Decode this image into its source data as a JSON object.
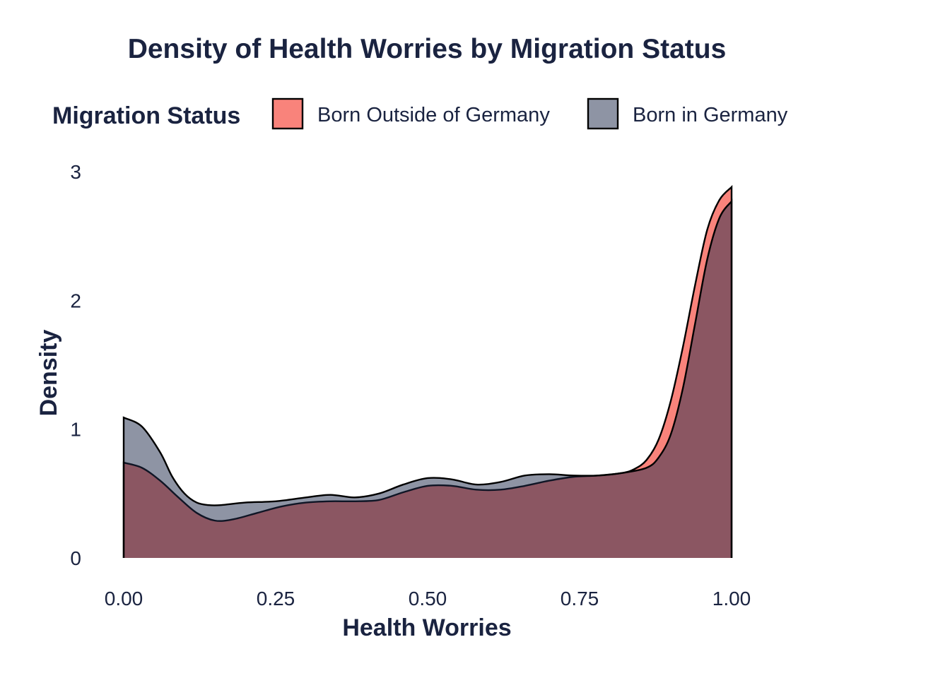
{
  "chart_data": {
    "type": "area",
    "title": "Density of Health Worries by Migration Status",
    "xlabel": "Health Worries",
    "ylabel": "Density",
    "xlim": [
      0,
      1
    ],
    "ylim": [
      0,
      3
    ],
    "x_ticks": [
      "0.00",
      "0.25",
      "0.50",
      "0.75",
      "1.00"
    ],
    "x_tick_values": [
      0,
      0.25,
      0.5,
      0.75,
      1.0
    ],
    "y_ticks": [
      "0",
      "1",
      "2",
      "3"
    ],
    "y_tick_values": [
      0,
      1,
      2,
      3
    ],
    "grid": false,
    "legend": {
      "title": "Migration Status",
      "placement": "top"
    },
    "series": [
      {
        "name": "Born Outside of Germany",
        "color": "#F8766D",
        "fill_opacity": 0.9,
        "points": [
          [
            0.0,
            0.74
          ],
          [
            0.03,
            0.7
          ],
          [
            0.06,
            0.6
          ],
          [
            0.09,
            0.47
          ],
          [
            0.12,
            0.35
          ],
          [
            0.15,
            0.29
          ],
          [
            0.18,
            0.3
          ],
          [
            0.22,
            0.35
          ],
          [
            0.26,
            0.4
          ],
          [
            0.3,
            0.43
          ],
          [
            0.34,
            0.44
          ],
          [
            0.38,
            0.44
          ],
          [
            0.42,
            0.45
          ],
          [
            0.46,
            0.51
          ],
          [
            0.5,
            0.56
          ],
          [
            0.54,
            0.56
          ],
          [
            0.58,
            0.53
          ],
          [
            0.62,
            0.53
          ],
          [
            0.66,
            0.56
          ],
          [
            0.7,
            0.6
          ],
          [
            0.74,
            0.63
          ],
          [
            0.78,
            0.64
          ],
          [
            0.82,
            0.66
          ],
          [
            0.84,
            0.69
          ],
          [
            0.86,
            0.76
          ],
          [
            0.88,
            0.92
          ],
          [
            0.9,
            1.22
          ],
          [
            0.92,
            1.64
          ],
          [
            0.94,
            2.12
          ],
          [
            0.96,
            2.55
          ],
          [
            0.98,
            2.78
          ],
          [
            1.0,
            2.88
          ]
        ]
      },
      {
        "name": "Born in Germany",
        "color": "#1E2A4A",
        "fill_opacity": 0.5,
        "points": [
          [
            0.0,
            1.09
          ],
          [
            0.03,
            1.02
          ],
          [
            0.06,
            0.82
          ],
          [
            0.08,
            0.63
          ],
          [
            0.1,
            0.5
          ],
          [
            0.12,
            0.43
          ],
          [
            0.14,
            0.41
          ],
          [
            0.16,
            0.41
          ],
          [
            0.2,
            0.43
          ],
          [
            0.25,
            0.44
          ],
          [
            0.3,
            0.47
          ],
          [
            0.34,
            0.49
          ],
          [
            0.38,
            0.47
          ],
          [
            0.42,
            0.5
          ],
          [
            0.46,
            0.57
          ],
          [
            0.5,
            0.62
          ],
          [
            0.54,
            0.61
          ],
          [
            0.58,
            0.57
          ],
          [
            0.62,
            0.59
          ],
          [
            0.66,
            0.64
          ],
          [
            0.7,
            0.65
          ],
          [
            0.74,
            0.64
          ],
          [
            0.78,
            0.64
          ],
          [
            0.82,
            0.66
          ],
          [
            0.86,
            0.7
          ],
          [
            0.88,
            0.78
          ],
          [
            0.9,
            0.96
          ],
          [
            0.92,
            1.32
          ],
          [
            0.94,
            1.82
          ],
          [
            0.96,
            2.32
          ],
          [
            0.98,
            2.64
          ],
          [
            1.0,
            2.77
          ]
        ]
      }
    ]
  }
}
